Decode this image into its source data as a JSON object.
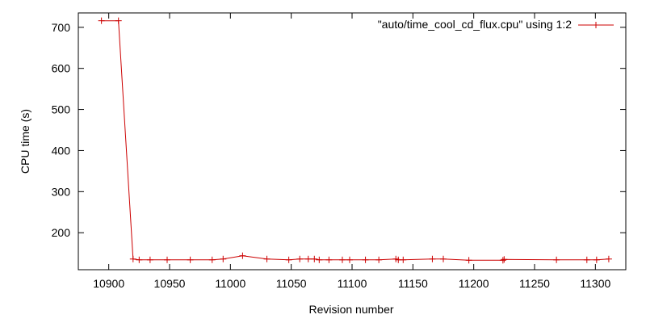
{
  "chart_data": {
    "type": "line",
    "title": "",
    "xlabel": "Revision number",
    "ylabel": "CPU time (s)",
    "xlim": [
      10875,
      11325
    ],
    "ylim": [
      110,
      735
    ],
    "x_ticks": [
      10900,
      10950,
      11000,
      11050,
      11100,
      11150,
      11200,
      11250,
      11300
    ],
    "y_ticks": [
      200,
      300,
      400,
      500,
      600,
      700
    ],
    "grid": false,
    "legend_position": "top-right",
    "series": [
      {
        "name": "\"auto/time_cool_cd_flux.cpu\" using 1:2",
        "color": "#cc0000",
        "marker": "plus",
        "x": [
          10894,
          10908,
          10920,
          10925,
          10934,
          10948,
          10967,
          10985,
          10994,
          11010,
          11030,
          11048,
          11057,
          11064,
          11069,
          11073,
          11081,
          11092,
          11098,
          11111,
          11122,
          11136,
          11138,
          11142,
          11166,
          11175,
          11196,
          11224,
          11225,
          11268,
          11293,
          11301,
          11311
        ],
        "y": [
          716,
          716,
          136,
          134,
          134,
          134,
          134,
          134,
          136,
          144,
          136,
          134,
          136,
          136,
          136,
          134,
          134,
          134,
          134,
          134,
          134,
          136,
          134,
          134,
          136,
          136,
          133,
          133,
          135,
          134,
          134,
          134,
          136
        ]
      }
    ]
  }
}
